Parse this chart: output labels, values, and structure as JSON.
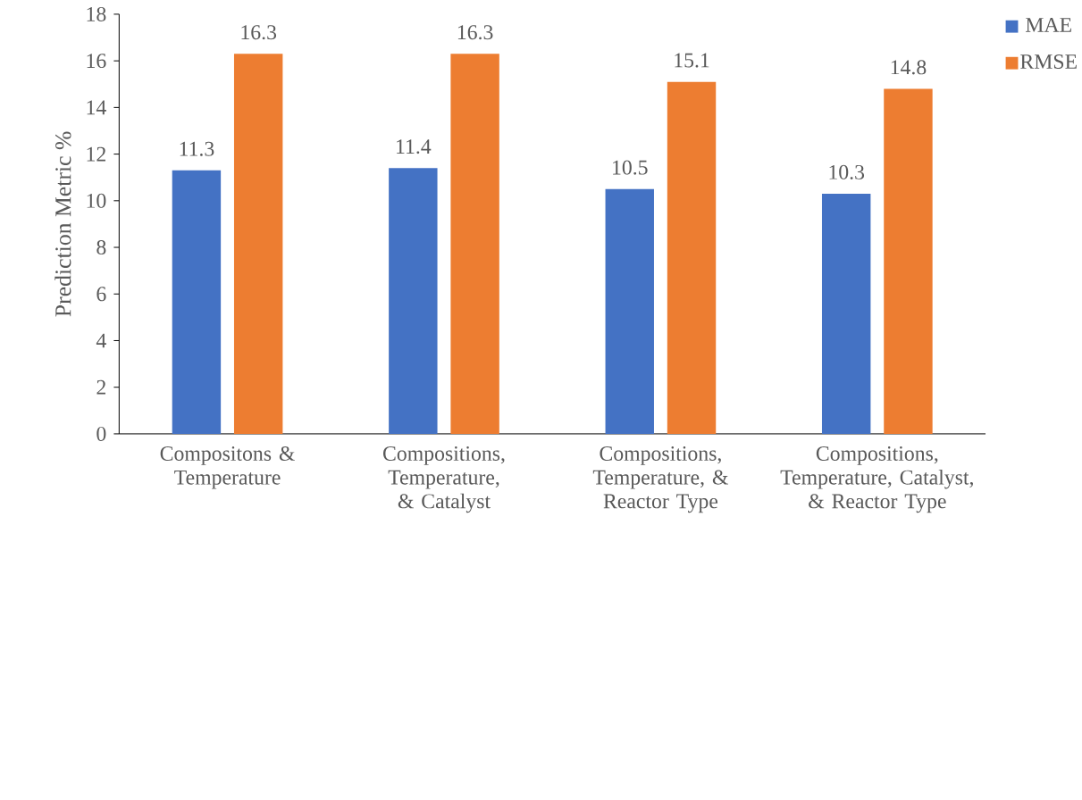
{
  "chart_data": {
    "type": "bar",
    "ylabel": "Prediction Metric %",
    "categories": [
      "Compositons & Temperature",
      "Compositions, Temperature, & Catalyst",
      "Compositions, Temperature, & Reactor Type",
      "Compositions, Temperature, Catalyst, & Reactor Type"
    ],
    "series": [
      {
        "name": "MAE",
        "color": "#4472c4",
        "values": [
          11.3,
          11.4,
          10.5,
          10.3
        ]
      },
      {
        "name": "RMSE",
        "color": "#ed7d31",
        "values": [
          16.3,
          16.3,
          15.1,
          14.8
        ]
      }
    ],
    "ylim": [
      0,
      18
    ],
    "yticks": [
      0,
      2,
      4,
      6,
      8,
      10,
      12,
      14,
      16,
      18
    ],
    "data_labels": true,
    "grid": false,
    "legend": "top right"
  }
}
